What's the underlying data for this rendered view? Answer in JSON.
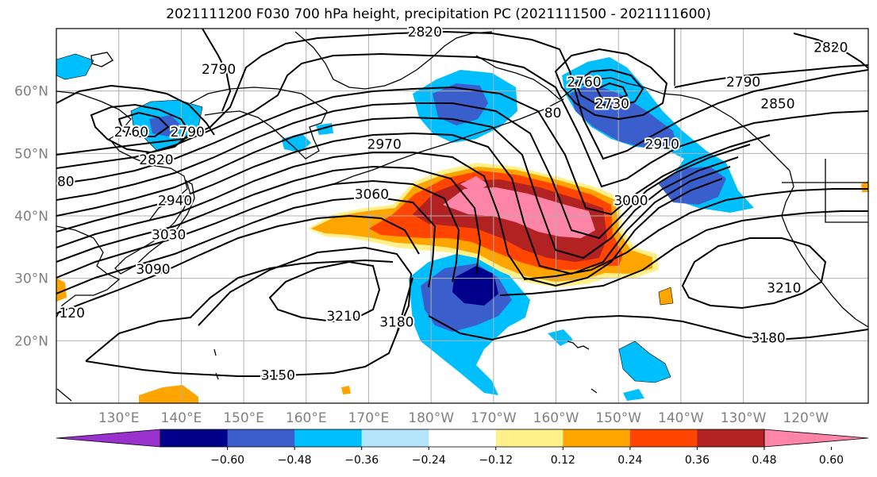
{
  "title": "2021111200 F030 700 hPa height, precipitation PC (2021111500 - 2021111600)",
  "map": {
    "projection": "equirectangular",
    "lon_range": [
      120,
      250
    ],
    "lat_range": [
      10,
      70
    ],
    "grid": true,
    "lat_labels": [
      {
        "lat": 60,
        "text": "60°N"
      },
      {
        "lat": 50,
        "text": "50°N"
      },
      {
        "lat": 40,
        "text": "40°N"
      },
      {
        "lat": 30,
        "text": "30°N"
      },
      {
        "lat": 20,
        "text": "20°N"
      }
    ],
    "lon_labels": [
      {
        "lon": 130,
        "text": "130°E"
      },
      {
        "lon": 140,
        "text": "140°E"
      },
      {
        "lon": 150,
        "text": "150°E"
      },
      {
        "lon": 160,
        "text": "160°E"
      },
      {
        "lon": 170,
        "text": "170°E"
      },
      {
        "lon": 180,
        "text": "180°W"
      },
      {
        "lon": 190,
        "text": "170°W"
      },
      {
        "lon": 200,
        "text": "160°W"
      },
      {
        "lon": 210,
        "text": "150°W"
      },
      {
        "lon": 220,
        "text": "140°W"
      },
      {
        "lon": 230,
        "text": "130°W"
      },
      {
        "lon": 240,
        "text": "120°W"
      }
    ],
    "contour_labels": [
      {
        "text": "2820",
        "lon": 179,
        "lat": 69.5
      },
      {
        "text": "2790",
        "lon": 146,
        "lat": 63.5
      },
      {
        "text": "2760",
        "lon": 132,
        "lat": 53.5
      },
      {
        "text": "2790",
        "lon": 141,
        "lat": 53.5
      },
      {
        "text": "2820",
        "lon": 136,
        "lat": 49
      },
      {
        "text": "80",
        "lon": 121.5,
        "lat": 45.5
      },
      {
        "text": "2940",
        "lon": 139,
        "lat": 42.5
      },
      {
        "text": "3030",
        "lon": 138,
        "lat": 37
      },
      {
        "text": "3090",
        "lon": 135.5,
        "lat": 31.5
      },
      {
        "text": "120",
        "lon": 122.5,
        "lat": 24.5
      },
      {
        "text": "3150",
        "lon": 155.5,
        "lat": 14.5
      },
      {
        "text": "3210",
        "lon": 166,
        "lat": 24
      },
      {
        "text": "3180",
        "lon": 174.5,
        "lat": 23
      },
      {
        "text": "3060",
        "lon": 170.5,
        "lat": 43.5
      },
      {
        "text": "2970",
        "lon": 172.5,
        "lat": 51.5
      },
      {
        "text": "2760",
        "lon": 204.5,
        "lat": 61.5
      },
      {
        "text": "2730",
        "lon": 209,
        "lat": 58
      },
      {
        "text": "80",
        "lon": 199.5,
        "lat": 56.5
      },
      {
        "text": "2790",
        "lon": 230,
        "lat": 61.5
      },
      {
        "text": "2850",
        "lon": 235.5,
        "lat": 58
      },
      {
        "text": "2910",
        "lon": 217,
        "lat": 51.5
      },
      {
        "text": "3000",
        "lon": 212,
        "lat": 42.5
      },
      {
        "text": "3210",
        "lon": 236.5,
        "lat": 28.5
      },
      {
        "text": "3180",
        "lon": 234,
        "lat": 20.5
      },
      {
        "text": "2820",
        "lon": 244,
        "lat": 67
      }
    ]
  },
  "colorbar": {
    "ticks": [
      "−0.60",
      "−0.48",
      "−0.36",
      "−0.24",
      "−0.12",
      "0.12",
      "0.24",
      "0.36",
      "0.48",
      "0.60"
    ],
    "colors": [
      "#9932cc",
      "#00008b",
      "#3a5fcd",
      "#00bfff",
      "#b3e5fc",
      "#ffffff",
      "#fff08a",
      "#ffa500",
      "#ff4500",
      "#b22222",
      "#ff85a8"
    ]
  }
}
